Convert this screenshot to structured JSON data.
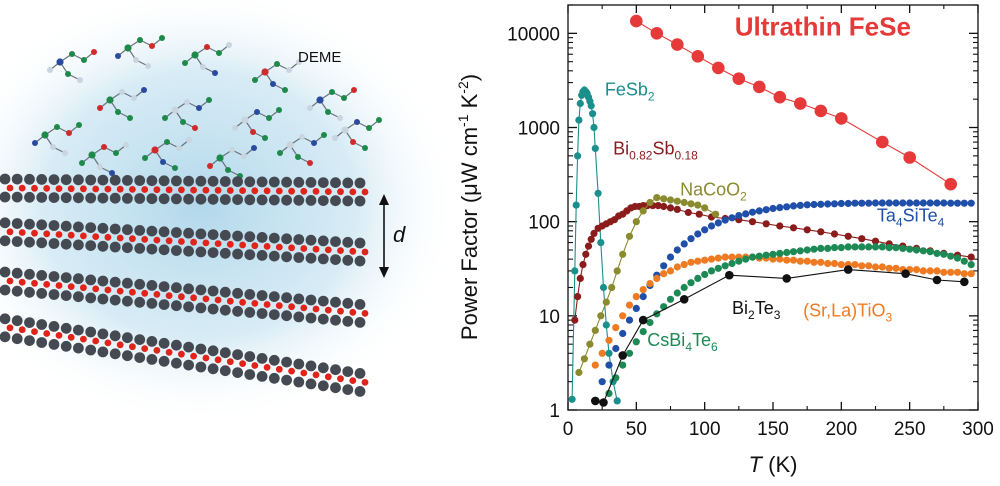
{
  "illustration": {
    "electrolyte_label": "DEME",
    "spacing_label": "d",
    "colors": {
      "glow": "#aed6ea",
      "atom_dark": "#454a52",
      "atom_red": "#e2231a",
      "mol_green": "#1e8a4a",
      "mol_red": "#d12a2a",
      "mol_blue": "#2a4aa0",
      "mol_white": "#c9d4de",
      "mol_gray": "#6a737c"
    }
  },
  "chart_data": {
    "type": "scatter",
    "xlabel_italic": "T",
    "xlabel_rest": " (K)",
    "ylabel_main": "Power Factor (μW cm",
    "ylabel_sup1": "-1",
    "ylabel_mid": " K",
    "ylabel_sup2": "-2",
    "ylabel_end": ")",
    "xlim": [
      0,
      300
    ],
    "ylim": [
      1,
      20000
    ],
    "yscale": "log",
    "xticks": [
      "0",
      "50",
      "100",
      "150",
      "200",
      "250",
      "300"
    ],
    "xtick_values": [
      0,
      50,
      100,
      150,
      200,
      250,
      300
    ],
    "yticks": [
      "1",
      "10",
      "100",
      "1000",
      "10000"
    ],
    "ytick_values": [
      1,
      10,
      100,
      1000,
      10000
    ],
    "grid": false,
    "legend": "none",
    "series": [
      {
        "key": "fesb2",
        "label_parts": [
          [
            "FeSb",
            ""
          ],
          [
            "2",
            "sub"
          ]
        ],
        "color": "#1a8f8c",
        "label_anchor": [
          27,
          2200
        ],
        "marker": "small",
        "line": true,
        "x": [
          3,
          5,
          6,
          7,
          8,
          9,
          10,
          11,
          12,
          13,
          14,
          15,
          16,
          17,
          18,
          19,
          20,
          22,
          24,
          26,
          28,
          30,
          33,
          36
        ],
        "y": [
          1.3,
          30,
          150,
          500,
          1200,
          1800,
          2200,
          2400,
          2500,
          2400,
          2300,
          2100,
          1900,
          1700,
          1400,
          1000,
          600,
          200,
          60,
          20,
          8,
          4,
          2,
          1.25
        ]
      },
      {
        "key": "bisb",
        "label_parts": [
          [
            "Bi",
            ""
          ],
          [
            "0.82",
            "sub"
          ],
          [
            "Sb",
            ""
          ],
          [
            "0.18",
            "sub"
          ]
        ],
        "color": "#8b1c1c",
        "label_anchor": [
          33,
          520
        ],
        "marker": "small",
        "line": true,
        "x": [
          5,
          7,
          9,
          11,
          13,
          15,
          17,
          19,
          22,
          25,
          28,
          31,
          34,
          37,
          40,
          43,
          46,
          49,
          52,
          55,
          58,
          62,
          66,
          70,
          75,
          80,
          88,
          96,
          105,
          115,
          125,
          135,
          145,
          155,
          165,
          175,
          185,
          195,
          205,
          215,
          225,
          235,
          245,
          255,
          265,
          275,
          285,
          295
        ],
        "y": [
          9,
          16,
          25,
          35,
          45,
          55,
          65,
          75,
          85,
          90,
          95,
          100,
          105,
          115,
          120,
          130,
          140,
          145,
          145,
          148,
          148,
          148,
          148,
          145,
          140,
          135,
          125,
          120,
          112,
          108,
          105,
          100,
          95,
          90,
          86,
          82,
          78,
          74,
          70,
          66,
          62,
          58,
          55,
          52,
          49,
          46,
          44,
          42
        ]
      },
      {
        "key": "nacoo2",
        "label_parts": [
          [
            "NaCoO",
            ""
          ],
          [
            "2",
            "sub"
          ]
        ],
        "color": "#8a8a2e",
        "label_anchor": [
          82,
          190
        ],
        "marker": "small",
        "line": true,
        "x": [
          8,
          12,
          16,
          20,
          24,
          28,
          32,
          36,
          40,
          45,
          50,
          55,
          60,
          65,
          70,
          75,
          80,
          85,
          90,
          95,
          100,
          108
        ],
        "y": [
          2.5,
          3.5,
          5,
          7,
          10,
          14,
          20,
          30,
          45,
          70,
          100,
          130,
          160,
          180,
          175,
          170,
          165,
          160,
          155,
          150,
          140,
          120
        ]
      },
      {
        "key": "ta4site4",
        "label_parts": [
          [
            "Ta",
            ""
          ],
          [
            "4",
            "sub"
          ],
          [
            "SiTe",
            ""
          ],
          [
            "4",
            "sub"
          ]
        ],
        "color": "#1f4fa8",
        "label_anchor": [
          226,
          100
        ],
        "marker": "small",
        "line": false,
        "x": [
          25,
          30,
          35,
          40,
          45,
          50,
          55,
          60,
          65,
          70,
          75,
          80,
          85,
          90,
          95,
          100,
          105,
          110,
          115,
          120,
          125,
          130,
          135,
          140,
          145,
          150,
          155,
          160,
          165,
          170,
          175,
          180,
          185,
          190,
          195,
          200,
          205,
          210,
          215,
          220,
          225,
          230,
          235,
          240,
          245,
          250,
          255,
          260,
          265,
          270,
          275,
          280,
          285,
          290,
          295
        ],
        "y": [
          2,
          3,
          4.5,
          6.5,
          9,
          12,
          16,
          21,
          27,
          34,
          42,
          50,
          58,
          66,
          74,
          82,
          90,
          97,
          104,
          110,
          116,
          121,
          126,
          130,
          134,
          138,
          141,
          144,
          147,
          149,
          151,
          152,
          153,
          154,
          155,
          156,
          156,
          157,
          157,
          157,
          158,
          158,
          158,
          158,
          158,
          158,
          158,
          158,
          158,
          158,
          158,
          157,
          157,
          157,
          157
        ]
      },
      {
        "key": "srlatio3",
        "label_parts": [
          [
            "(Sr,La)TiO",
            ""
          ],
          [
            "3",
            "sub"
          ]
        ],
        "color": "#ee7a22",
        "label_anchor": [
          172,
          9.8
        ],
        "marker": "small",
        "line": false,
        "x": [
          20,
          25,
          30,
          35,
          40,
          45,
          50,
          55,
          60,
          65,
          70,
          75,
          80,
          85,
          90,
          95,
          100,
          105,
          110,
          115,
          120,
          125,
          130,
          135,
          140,
          145,
          150,
          155,
          160,
          165,
          170,
          175,
          180,
          185,
          190,
          195,
          200,
          205,
          210,
          215,
          220,
          225,
          230,
          235,
          240,
          245,
          250,
          255,
          260,
          265,
          270,
          275,
          280,
          285,
          290,
          295
        ],
        "y": [
          3,
          4,
          5.5,
          7.5,
          10,
          13,
          16,
          19,
          22,
          25,
          28,
          30,
          33,
          35,
          37,
          38,
          39,
          40,
          41,
          42,
          42,
          42,
          42,
          42,
          41,
          41,
          40,
          40,
          39,
          39,
          38,
          38,
          37,
          37,
          36,
          36,
          35,
          35,
          35,
          34,
          34,
          33,
          33,
          32,
          32,
          31,
          31,
          31,
          30,
          30,
          30,
          29,
          29,
          29,
          28,
          28
        ]
      },
      {
        "key": "csbi4te6",
        "label_parts": [
          [
            "CsBi",
            ""
          ],
          [
            "4",
            "sub"
          ],
          [
            "Te",
            ""
          ],
          [
            "6",
            "sub"
          ]
        ],
        "color": "#1d8a55",
        "label_anchor": [
          58,
          4.8
        ],
        "marker": "small",
        "line": false,
        "x": [
          30,
          35,
          40,
          45,
          50,
          55,
          60,
          65,
          70,
          75,
          80,
          85,
          90,
          95,
          100,
          105,
          110,
          115,
          120,
          125,
          130,
          135,
          140,
          145,
          150,
          155,
          160,
          165,
          170,
          175,
          180,
          185,
          190,
          195,
          200,
          205,
          210,
          215,
          220,
          225,
          230,
          235,
          240,
          245,
          250,
          255,
          260,
          265,
          270,
          275,
          280,
          285,
          290,
          295
        ],
        "y": [
          1.5,
          2.2,
          3,
          4,
          5.3,
          6.8,
          8.5,
          10.5,
          12.5,
          15,
          17.5,
          20,
          22.5,
          25,
          27.5,
          30,
          32,
          34,
          36,
          38,
          40,
          42,
          43,
          44,
          45,
          46,
          47,
          48,
          49,
          50,
          51,
          52,
          52,
          53,
          53,
          54,
          54,
          54,
          54,
          54,
          54,
          53,
          53,
          52,
          51,
          50,
          49,
          48,
          46,
          45,
          43,
          41,
          38,
          35
        ]
      },
      {
        "key": "bi2te3",
        "label_parts": [
          [
            "Bi",
            ""
          ],
          [
            "2",
            "sub"
          ],
          [
            "Te",
            ""
          ],
          [
            "3",
            "sub"
          ]
        ],
        "color": "#111111",
        "label_anchor": [
          120,
          10.5
        ],
        "marker": "medium",
        "line": true,
        "x": [
          20,
          26,
          40,
          55,
          85,
          118,
          160,
          205,
          247,
          270,
          290
        ],
        "y": [
          1.25,
          1.2,
          3.8,
          9,
          15,
          27,
          25,
          31,
          28,
          24,
          23
        ]
      },
      {
        "key": "fese",
        "label_parts": [
          [
            "Ultrathin FeSe",
            ""
          ]
        ],
        "color": "#e63a3a",
        "label_anchor": [
          122,
          9500
        ],
        "marker": "large",
        "line": true,
        "label_bold": true,
        "x": [
          50,
          65,
          80,
          95,
          110,
          125,
          140,
          155,
          170,
          185,
          200,
          230,
          250,
          280
        ],
        "y": [
          13500,
          10000,
          7600,
          5700,
          4300,
          3300,
          2700,
          2100,
          1800,
          1500,
          1250,
          700,
          480,
          250
        ]
      }
    ]
  }
}
